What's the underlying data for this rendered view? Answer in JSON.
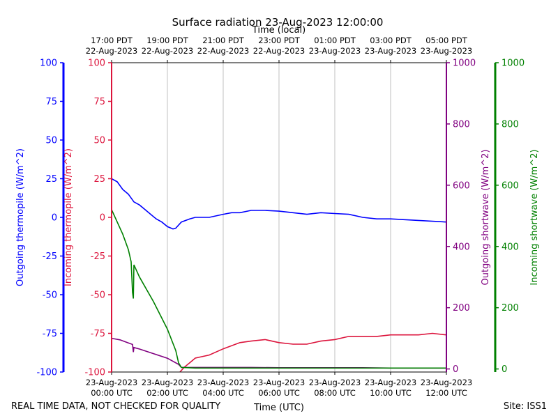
{
  "chart_data": {
    "type": "line",
    "title": "Surface radiation 23-Aug-2023 12:00:00",
    "top_axis_label": "Time (local)",
    "xlabel": "Time (UTC)",
    "x_ticks_utc": [
      [
        "23-Aug-2023",
        "00:00 UTC"
      ],
      [
        "23-Aug-2023",
        "02:00 UTC"
      ],
      [
        "23-Aug-2023",
        "04:00 UTC"
      ],
      [
        "23-Aug-2023",
        "06:00 UTC"
      ],
      [
        "23-Aug-2023",
        "08:00 UTC"
      ],
      [
        "23-Aug-2023",
        "10:00 UTC"
      ],
      [
        "23-Aug-2023",
        "12:00 UTC"
      ]
    ],
    "x_ticks_local": [
      [
        "17:00 PDT",
        "22-Aug-2023"
      ],
      [
        "19:00 PDT",
        "22-Aug-2023"
      ],
      [
        "21:00 PDT",
        "22-Aug-2023"
      ],
      [
        "23:00 PDT",
        "22-Aug-2023"
      ],
      [
        "01:00 PDT",
        "23-Aug-2023"
      ],
      [
        "03:00 PDT",
        "23-Aug-2023"
      ],
      [
        "05:00 PDT",
        "23-Aug-2023"
      ]
    ],
    "xlim": [
      0,
      12
    ],
    "x_grid": true,
    "axes": [
      {
        "id": "out_thermo",
        "label": "Outgoing thermopile (W/m^2)",
        "color": "#0000ff",
        "ylim": [
          -100,
          100
        ],
        "ticks": [
          -100,
          -75,
          -50,
          -25,
          0,
          25,
          50,
          75,
          100
        ]
      },
      {
        "id": "in_thermo",
        "label": "Incoming thermopile (W/m^2)",
        "color": "#dc143c",
        "ylim": [
          -100,
          100
        ],
        "ticks": [
          -100,
          -75,
          -50,
          -25,
          0,
          25,
          50,
          75,
          100
        ]
      },
      {
        "id": "out_sw",
        "label": "Outgoing shortwave (W/m^2)",
        "color": "#800080",
        "ylim": [
          -10,
          1000
        ],
        "ticks": [
          0,
          200,
          400,
          600,
          800,
          1000
        ]
      },
      {
        "id": "in_sw",
        "label": "Incoming shortwave (W/m^2)",
        "color": "#008000",
        "ylim": [
          -10,
          1000
        ],
        "ticks": [
          0,
          200,
          400,
          600,
          800,
          1000
        ]
      }
    ],
    "series": [
      {
        "axis": "out_thermo",
        "color": "#0000ff",
        "points": [
          [
            0,
            25
          ],
          [
            0.2,
            23
          ],
          [
            0.4,
            18
          ],
          [
            0.6,
            15
          ],
          [
            0.8,
            10
          ],
          [
            1.0,
            8
          ],
          [
            1.2,
            5
          ],
          [
            1.4,
            2
          ],
          [
            1.6,
            -1
          ],
          [
            1.8,
            -3
          ],
          [
            2.0,
            -6
          ],
          [
            2.2,
            -7.5
          ],
          [
            2.3,
            -7
          ],
          [
            2.5,
            -3
          ],
          [
            2.8,
            -1
          ],
          [
            3.0,
            0
          ],
          [
            3.5,
            0
          ],
          [
            4.0,
            2
          ],
          [
            4.3,
            3
          ],
          [
            4.6,
            3
          ],
          [
            5.0,
            4.5
          ],
          [
            5.5,
            4.5
          ],
          [
            6.0,
            4
          ],
          [
            6.5,
            3
          ],
          [
            7.0,
            2
          ],
          [
            7.5,
            3
          ],
          [
            8.0,
            2.5
          ],
          [
            8.5,
            2
          ],
          [
            9.0,
            0
          ],
          [
            9.5,
            -1
          ],
          [
            10.0,
            -1
          ],
          [
            10.5,
            -1.5
          ],
          [
            11.0,
            -2
          ],
          [
            11.5,
            -2.5
          ],
          [
            12.0,
            -3
          ]
        ]
      },
      {
        "axis": "in_thermo",
        "color": "#dc143c",
        "points": [
          [
            2.45,
            -100
          ],
          [
            2.6,
            -97
          ],
          [
            2.8,
            -94
          ],
          [
            3.0,
            -91
          ],
          [
            3.5,
            -89
          ],
          [
            4.0,
            -85
          ],
          [
            4.3,
            -83
          ],
          [
            4.6,
            -81
          ],
          [
            5.0,
            -80
          ],
          [
            5.5,
            -79
          ],
          [
            6.0,
            -81
          ],
          [
            6.5,
            -82
          ],
          [
            7.0,
            -82
          ],
          [
            7.5,
            -80
          ],
          [
            8.0,
            -79
          ],
          [
            8.5,
            -77
          ],
          [
            9.0,
            -77
          ],
          [
            9.5,
            -77
          ],
          [
            10.0,
            -76
          ],
          [
            10.5,
            -76
          ],
          [
            11.0,
            -76
          ],
          [
            11.5,
            -75
          ],
          [
            12.0,
            -76
          ]
        ]
      },
      {
        "axis": "out_sw",
        "color": "#800080",
        "points": [
          [
            0,
            100
          ],
          [
            0.3,
            95
          ],
          [
            0.6,
            85
          ],
          [
            0.75,
            80
          ],
          [
            0.78,
            55
          ],
          [
            0.8,
            70
          ],
          [
            1.0,
            65
          ],
          [
            1.5,
            50
          ],
          [
            2.0,
            35
          ],
          [
            2.4,
            15
          ],
          [
            2.5,
            5
          ],
          [
            3.0,
            5
          ],
          [
            4.0,
            5
          ],
          [
            5.0,
            5
          ],
          [
            6.0,
            4
          ],
          [
            7.0,
            4
          ],
          [
            8.0,
            4
          ],
          [
            9.0,
            4
          ],
          [
            10.0,
            3
          ],
          [
            11.0,
            3
          ],
          [
            12.0,
            3
          ]
        ]
      },
      {
        "axis": "in_sw",
        "color": "#008000",
        "points": [
          [
            0,
            520
          ],
          [
            0.2,
            480
          ],
          [
            0.4,
            440
          ],
          [
            0.6,
            390
          ],
          [
            0.7,
            350
          ],
          [
            0.75,
            250
          ],
          [
            0.78,
            230
          ],
          [
            0.8,
            340
          ],
          [
            0.9,
            320
          ],
          [
            1.0,
            300
          ],
          [
            1.5,
            220
          ],
          [
            2.0,
            130
          ],
          [
            2.3,
            60
          ],
          [
            2.4,
            20
          ],
          [
            2.5,
            5
          ],
          [
            3.0,
            3
          ],
          [
            4.0,
            3
          ],
          [
            6.0,
            3
          ],
          [
            8.0,
            3
          ],
          [
            10.0,
            3
          ],
          [
            12.0,
            3
          ]
        ]
      }
    ]
  },
  "footer": {
    "left_note": "REAL TIME DATA, NOT CHECKED FOR QUALITY",
    "site": "Site: ISS1"
  }
}
